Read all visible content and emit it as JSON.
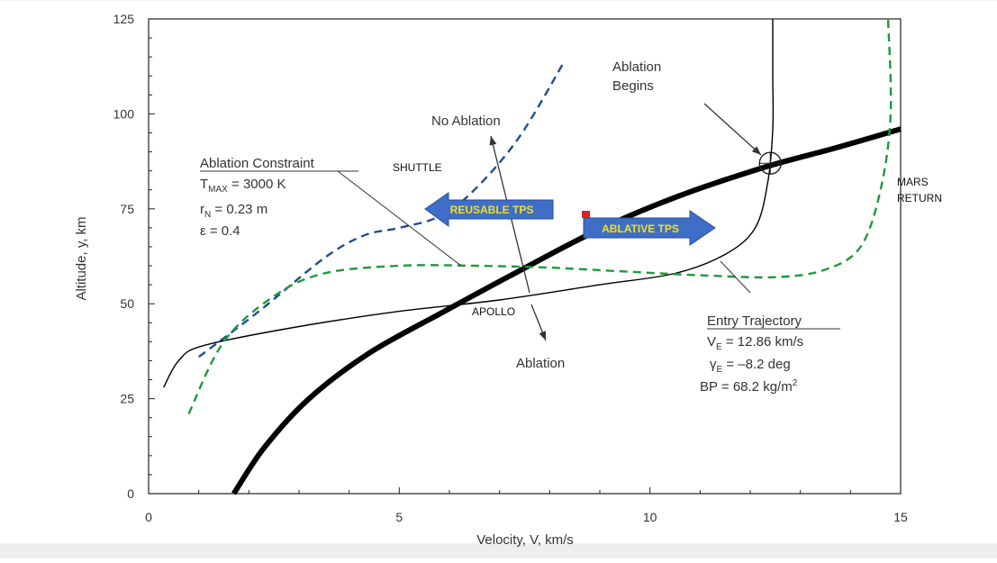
{
  "chart_data": {
    "type": "line",
    "xlabel": "Velocity, V, km/s",
    "ylabel": "Altitude, y, km",
    "xlim": [
      0,
      15
    ],
    "ylim": [
      0,
      125
    ],
    "x_ticks": [
      0,
      5,
      10,
      15
    ],
    "y_ticks": [
      0,
      25,
      50,
      75,
      100,
      125
    ],
    "grid": false,
    "series": [
      {
        "name": "",
        "color": "#000000",
        "style": "solid-thick",
        "points": [
          [
            1.7,
            0
          ],
          [
            2.3,
            12
          ],
          [
            3.2,
            25
          ],
          [
            4.4,
            37
          ],
          [
            5.9,
            48
          ],
          [
            7.3,
            58
          ],
          [
            8.9,
            69
          ],
          [
            10.5,
            78
          ],
          [
            12.3,
            86
          ],
          [
            13.7,
            91
          ],
          [
            15.0,
            96
          ]
        ]
      },
      {
        "name": "SHUTTLE",
        "color": "#1f4e8c",
        "style": "dashed",
        "points": [
          [
            1.0,
            36
          ],
          [
            2.2,
            48
          ],
          [
            3.5,
            62
          ],
          [
            4.3,
            68
          ],
          [
            5.0,
            70
          ],
          [
            5.8,
            73
          ],
          [
            6.5,
            80
          ],
          [
            7.4,
            94
          ],
          [
            8.3,
            114
          ]
        ]
      },
      {
        "name": "APOLLO",
        "color": "#000000",
        "style": "solid-thin",
        "points": [
          [
            0.3,
            28
          ],
          [
            0.6,
            35
          ],
          [
            1.1,
            39
          ],
          [
            3.0,
            44
          ],
          [
            5.0,
            48
          ],
          [
            7.0,
            51
          ],
          [
            9.0,
            55
          ],
          [
            10.5,
            58
          ],
          [
            11.5,
            63
          ],
          [
            12.1,
            70
          ],
          [
            12.35,
            82
          ],
          [
            12.45,
            96
          ],
          [
            12.45,
            110
          ],
          [
            12.45,
            125
          ]
        ]
      },
      {
        "name": "MARS RETURN",
        "color": "#1e9a3a",
        "style": "dashed",
        "points": [
          [
            0.8,
            21
          ],
          [
            1.5,
            40
          ],
          [
            2.5,
            52
          ],
          [
            3.5,
            58
          ],
          [
            5.0,
            60
          ],
          [
            6.5,
            60
          ],
          [
            8.0,
            59.5
          ],
          [
            9.5,
            58.5
          ],
          [
            11.0,
            57.5
          ],
          [
            12.5,
            57
          ],
          [
            13.5,
            59
          ],
          [
            14.2,
            65
          ],
          [
            14.6,
            80
          ],
          [
            14.8,
            100
          ],
          [
            14.75,
            125
          ]
        ]
      }
    ],
    "annotations": {
      "ablation_constraint": {
        "heading": "Ablation Constraint",
        "lines": [
          {
            "main": "T",
            "sub": "MAX",
            "rest": " = 3000 K"
          },
          {
            "main": "r",
            "sub": "N",
            "rest": " = 0.23 m"
          },
          {
            "main": "ε = 0.4",
            "sub": "",
            "rest": ""
          }
        ]
      },
      "entry_trajectory": {
        "heading": "Entry Trajectory",
        "lines": [
          {
            "main": "V",
            "sub": "E",
            "rest": " = 12.86 km/s"
          },
          {
            "main": "γ",
            "sub": "E",
            "rest": " = –8.2 deg"
          },
          {
            "main": "BP = 68.2 kg/m",
            "sup": "2"
          }
        ]
      },
      "ablation_begins": [
        "Ablation",
        "Begins"
      ],
      "no_ablation": "No Ablation",
      "ablation": "Ablation",
      "shuttle_label": "SHUTTLE",
      "apollo_label": "APOLLO",
      "mars_return_label": [
        "MARS",
        "RETURN"
      ],
      "reusable_tps": "REUSABLE TPS",
      "ablative_tps": "ABLATIVE TPS"
    },
    "colors": {
      "shuttle": "#1f4e8c",
      "mars_return": "#1e9a3a",
      "tps_arrow_fill": "#3f6ec7",
      "tps_arrow_text": "#f4e01c"
    }
  }
}
